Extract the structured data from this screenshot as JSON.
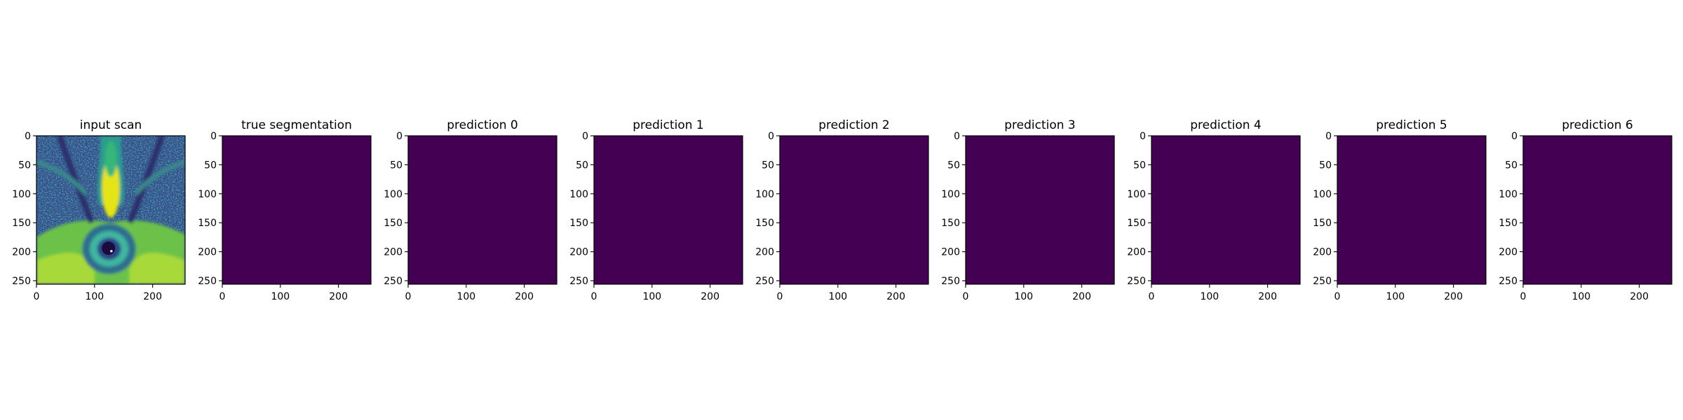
{
  "figure": {
    "background": "#ffffff",
    "panel_fill_empty": "#440154"
  },
  "chart_data": [
    {
      "type": "heatmap",
      "title": "input scan",
      "content": "mri-scan",
      "colormap": "viridis",
      "xlim": [
        0,
        256
      ],
      "ylim": [
        256,
        0
      ],
      "xticks": [
        0,
        100,
        200
      ],
      "yticks": [
        0,
        50,
        100,
        150,
        200,
        250
      ]
    },
    {
      "type": "heatmap",
      "title": "true segmentation",
      "content": "uniform",
      "value": 0,
      "colormap": "viridis",
      "xlim": [
        0,
        256
      ],
      "ylim": [
        256,
        0
      ],
      "xticks": [
        0,
        100,
        200
      ],
      "yticks": [
        0,
        50,
        100,
        150,
        200,
        250
      ]
    },
    {
      "type": "heatmap",
      "title": "prediction 0",
      "content": "uniform",
      "value": 0,
      "colormap": "viridis",
      "xlim": [
        0,
        256
      ],
      "ylim": [
        256,
        0
      ],
      "xticks": [
        0,
        100,
        200
      ],
      "yticks": [
        0,
        50,
        100,
        150,
        200,
        250
      ]
    },
    {
      "type": "heatmap",
      "title": "prediction 1",
      "content": "uniform",
      "value": 0,
      "colormap": "viridis",
      "xlim": [
        0,
        256
      ],
      "ylim": [
        256,
        0
      ],
      "xticks": [
        0,
        100,
        200
      ],
      "yticks": [
        0,
        50,
        100,
        150,
        200,
        250
      ]
    },
    {
      "type": "heatmap",
      "title": "prediction 2",
      "content": "uniform",
      "value": 0,
      "colormap": "viridis",
      "xlim": [
        0,
        256
      ],
      "ylim": [
        256,
        0
      ],
      "xticks": [
        0,
        100,
        200
      ],
      "yticks": [
        0,
        50,
        100,
        150,
        200,
        250
      ]
    },
    {
      "type": "heatmap",
      "title": "prediction 3",
      "content": "uniform",
      "value": 0,
      "colormap": "viridis",
      "xlim": [
        0,
        256
      ],
      "ylim": [
        256,
        0
      ],
      "xticks": [
        0,
        100,
        200
      ],
      "yticks": [
        0,
        50,
        100,
        150,
        200,
        250
      ]
    },
    {
      "type": "heatmap",
      "title": "prediction 4",
      "content": "uniform",
      "value": 0,
      "colormap": "viridis",
      "xlim": [
        0,
        256
      ],
      "ylim": [
        256,
        0
      ],
      "xticks": [
        0,
        100,
        200
      ],
      "yticks": [
        0,
        50,
        100,
        150,
        200,
        250
      ]
    },
    {
      "type": "heatmap",
      "title": "prediction 5",
      "content": "uniform",
      "value": 0,
      "colormap": "viridis",
      "xlim": [
        0,
        256
      ],
      "ylim": [
        256,
        0
      ],
      "xticks": [
        0,
        100,
        200
      ],
      "yticks": [
        0,
        50,
        100,
        150,
        200,
        250
      ]
    },
    {
      "type": "heatmap",
      "title": "prediction 6",
      "content": "uniform",
      "value": 0,
      "colormap": "viridis",
      "xlim": [
        0,
        256
      ],
      "ylim": [
        256,
        0
      ],
      "xticks": [
        0,
        100,
        200
      ],
      "yticks": [
        0,
        50,
        100,
        150,
        200,
        250
      ]
    }
  ]
}
